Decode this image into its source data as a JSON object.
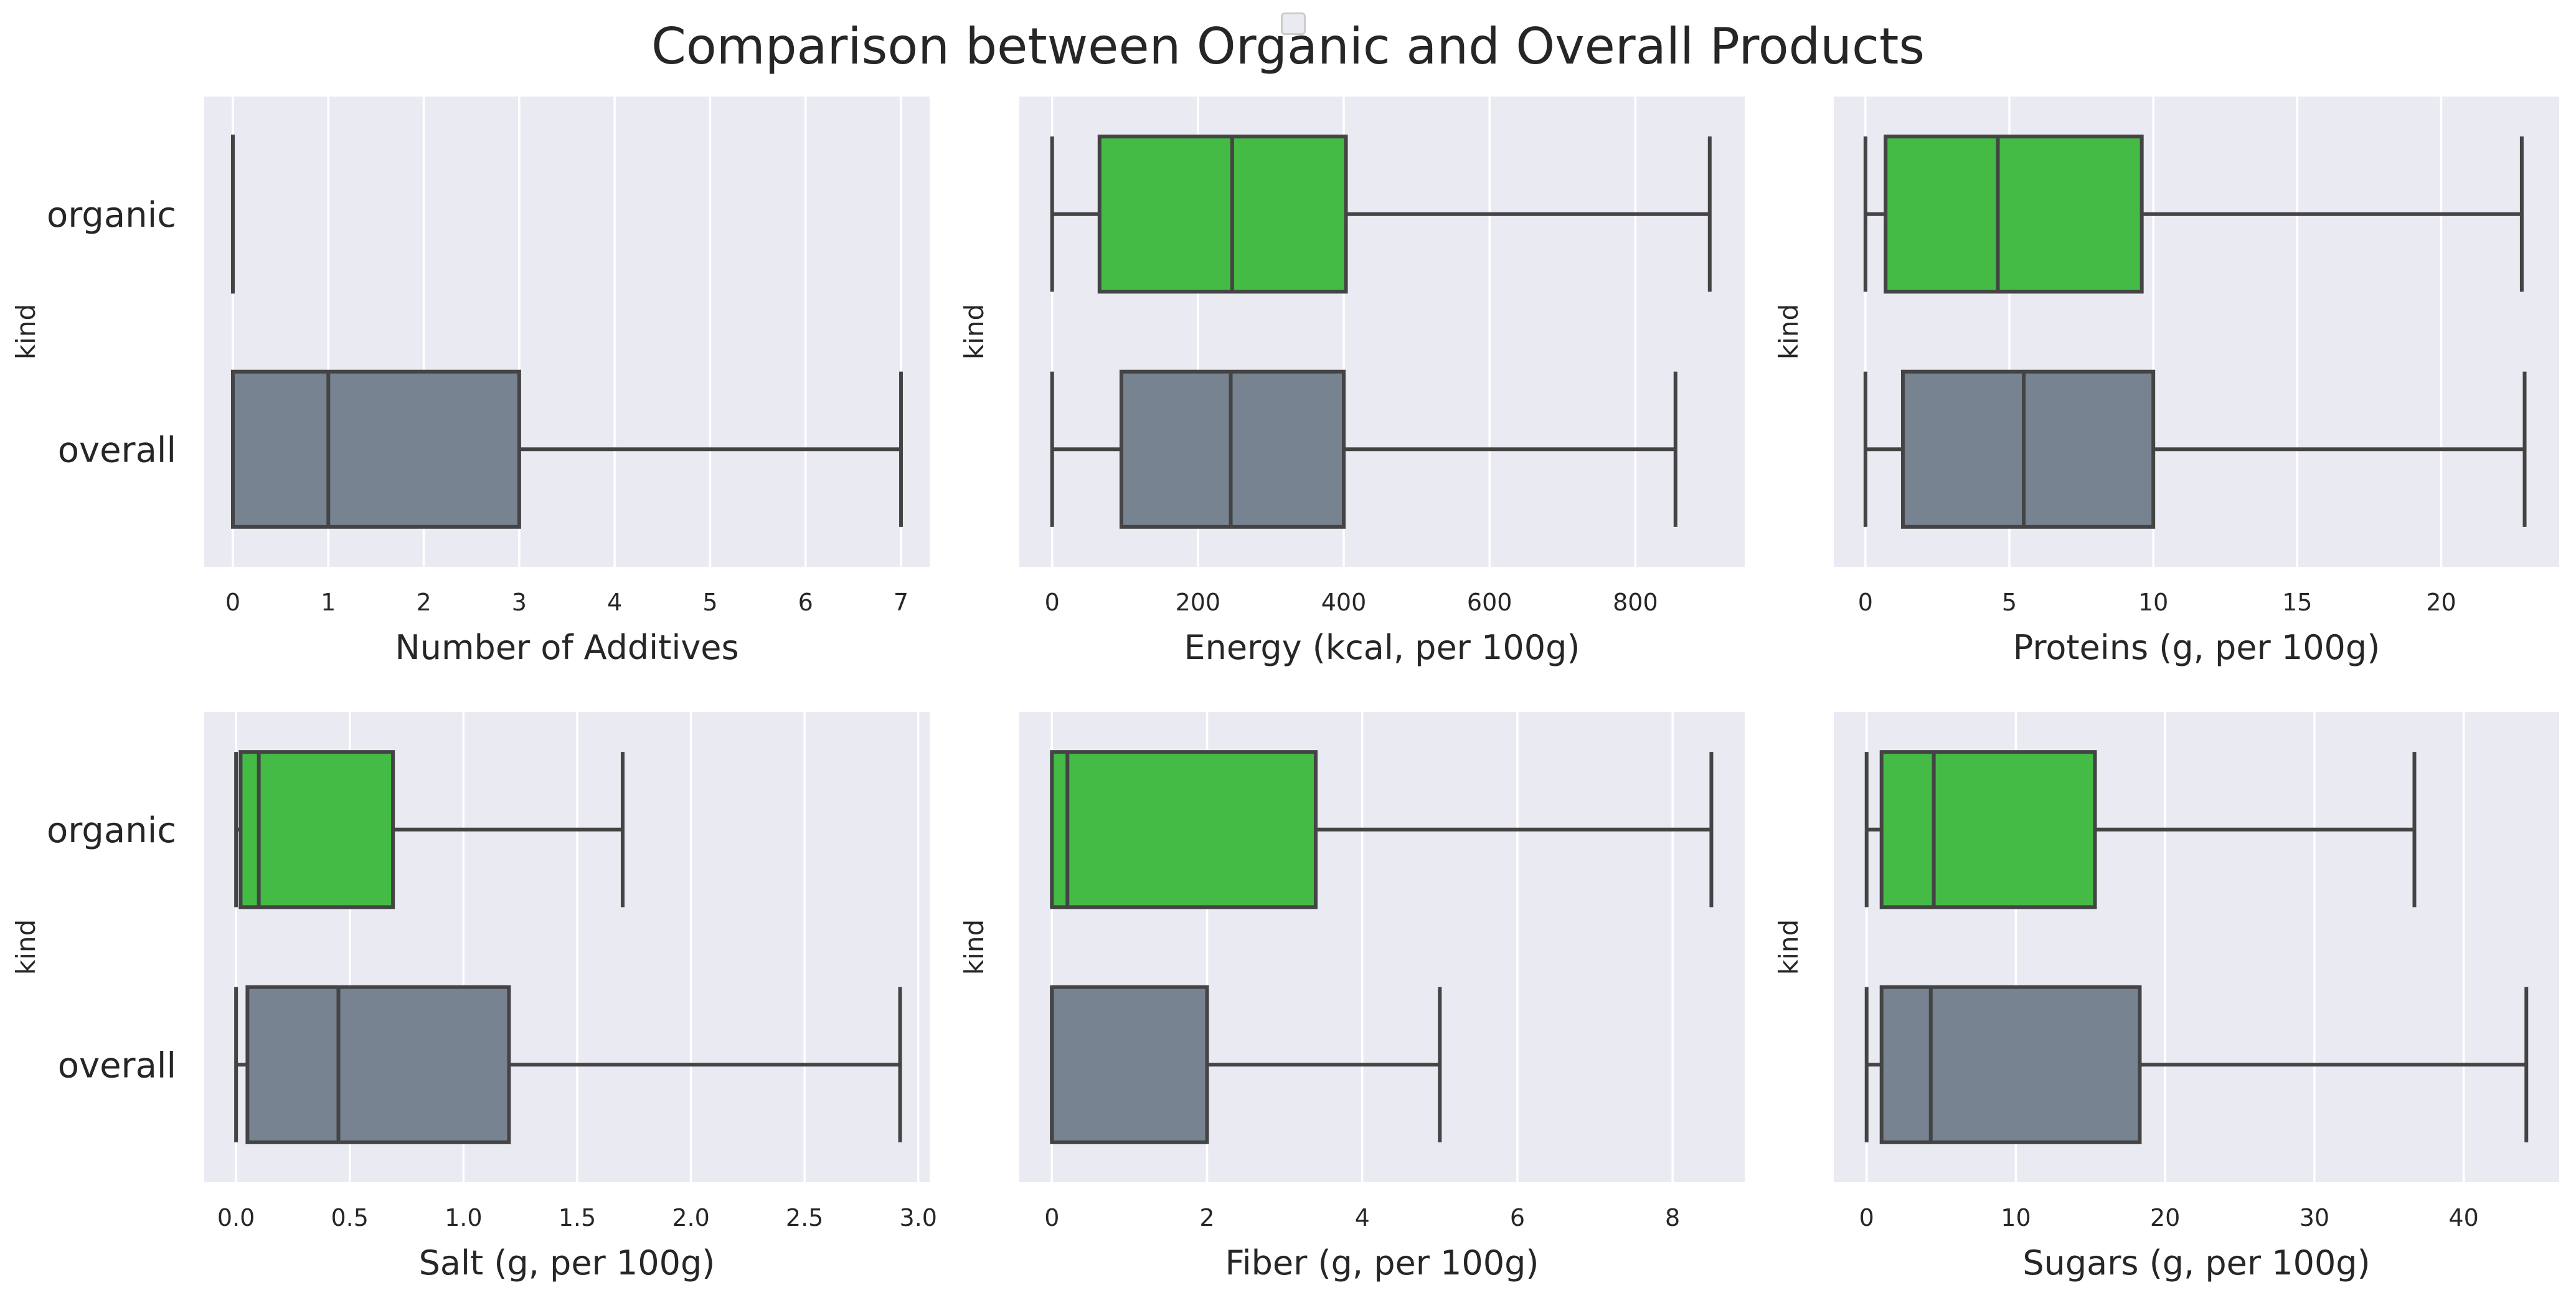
{
  "title": "Comparison between Organic and Overall Products",
  "colors": {
    "organic": "#44bb44",
    "overall": "#778391",
    "line": "#444444",
    "panel_bg": "#eaeaf2",
    "grid": "#ffffff"
  },
  "chart_data": [
    {
      "type": "box",
      "xlabel": "Number of Additives",
      "ylabel": "kind",
      "categories": [
        "organic",
        "overall"
      ],
      "xticks": [
        "0",
        "1",
        "2",
        "3",
        "4",
        "5",
        "6",
        "7"
      ],
      "xlim": [
        -0.3,
        7.3
      ],
      "boxes": [
        {
          "kind": "organic",
          "whisker_low": 0,
          "q1": 0,
          "median": 0,
          "q3": 0,
          "whisker_high": 0
        },
        {
          "kind": "overall",
          "whisker_low": 0,
          "q1": 0,
          "median": 1,
          "q3": 3,
          "whisker_high": 7
        }
      ]
    },
    {
      "type": "box",
      "xlabel": "Energy (kcal, per 100g)",
      "ylabel": "kind",
      "categories": [
        "organic",
        "overall"
      ],
      "xticks": [
        "0",
        "200",
        "400",
        "600",
        "800"
      ],
      "xlim": [
        -45,
        950
      ],
      "boxes": [
        {
          "kind": "organic",
          "whisker_low": 0,
          "q1": 65,
          "median": 247,
          "q3": 403,
          "whisker_high": 902
        },
        {
          "kind": "overall",
          "whisker_low": 0,
          "q1": 95,
          "median": 245,
          "q3": 400,
          "whisker_high": 855
        }
      ]
    },
    {
      "type": "box",
      "xlabel": "Proteins (g, per 100g)",
      "ylabel": "kind",
      "categories": [
        "organic",
        "overall"
      ],
      "xticks": [
        "0",
        "5",
        "10",
        "15",
        "20"
      ],
      "xlim": [
        -1.1,
        24.1
      ],
      "boxes": [
        {
          "kind": "organic",
          "whisker_low": 0,
          "q1": 0.7,
          "median": 4.6,
          "q3": 9.6,
          "whisker_high": 22.8
        },
        {
          "kind": "overall",
          "whisker_low": 0,
          "q1": 1.3,
          "median": 5.5,
          "q3": 10.0,
          "whisker_high": 22.9
        }
      ]
    },
    {
      "type": "box",
      "xlabel": "Salt (g, per 100g)",
      "ylabel": "kind",
      "categories": [
        "organic",
        "overall"
      ],
      "xticks": [
        "0.0",
        "0.5",
        "1.0",
        "1.5",
        "2.0",
        "2.5",
        "3.0"
      ],
      "xlim": [
        -0.14,
        3.05
      ],
      "boxes": [
        {
          "kind": "organic",
          "whisker_low": 0,
          "q1": 0.02,
          "median": 0.1,
          "q3": 0.69,
          "whisker_high": 1.7
        },
        {
          "kind": "overall",
          "whisker_low": 0,
          "q1": 0.05,
          "median": 0.45,
          "q3": 1.2,
          "whisker_high": 2.92
        }
      ]
    },
    {
      "type": "box",
      "xlabel": "Fiber (g, per 100g)",
      "ylabel": "kind",
      "categories": [
        "organic",
        "overall"
      ],
      "xticks": [
        "0",
        "2",
        "4",
        "6",
        "8"
      ],
      "xlim": [
        -0.42,
        8.93
      ],
      "boxes": [
        {
          "kind": "organic",
          "whisker_low": 0,
          "q1": 0,
          "median": 0.2,
          "q3": 3.4,
          "whisker_high": 8.5
        },
        {
          "kind": "overall",
          "whisker_low": 0,
          "q1": 0,
          "median": 0,
          "q3": 2.0,
          "whisker_high": 5.0
        }
      ]
    },
    {
      "type": "box",
      "xlabel": "Sugars (g, per 100g)",
      "ylabel": "kind",
      "categories": [
        "organic",
        "overall"
      ],
      "xticks": [
        "0",
        "10",
        "20",
        "30",
        "40"
      ],
      "xlim": [
        -2.2,
        46.4
      ],
      "boxes": [
        {
          "kind": "organic",
          "whisker_low": 0,
          "q1": 1.0,
          "median": 4.5,
          "q3": 15.3,
          "whisker_high": 36.7
        },
        {
          "kind": "overall",
          "whisker_low": 0,
          "q1": 1.0,
          "median": 4.3,
          "q3": 18.3,
          "whisker_high": 44.2
        }
      ]
    }
  ]
}
